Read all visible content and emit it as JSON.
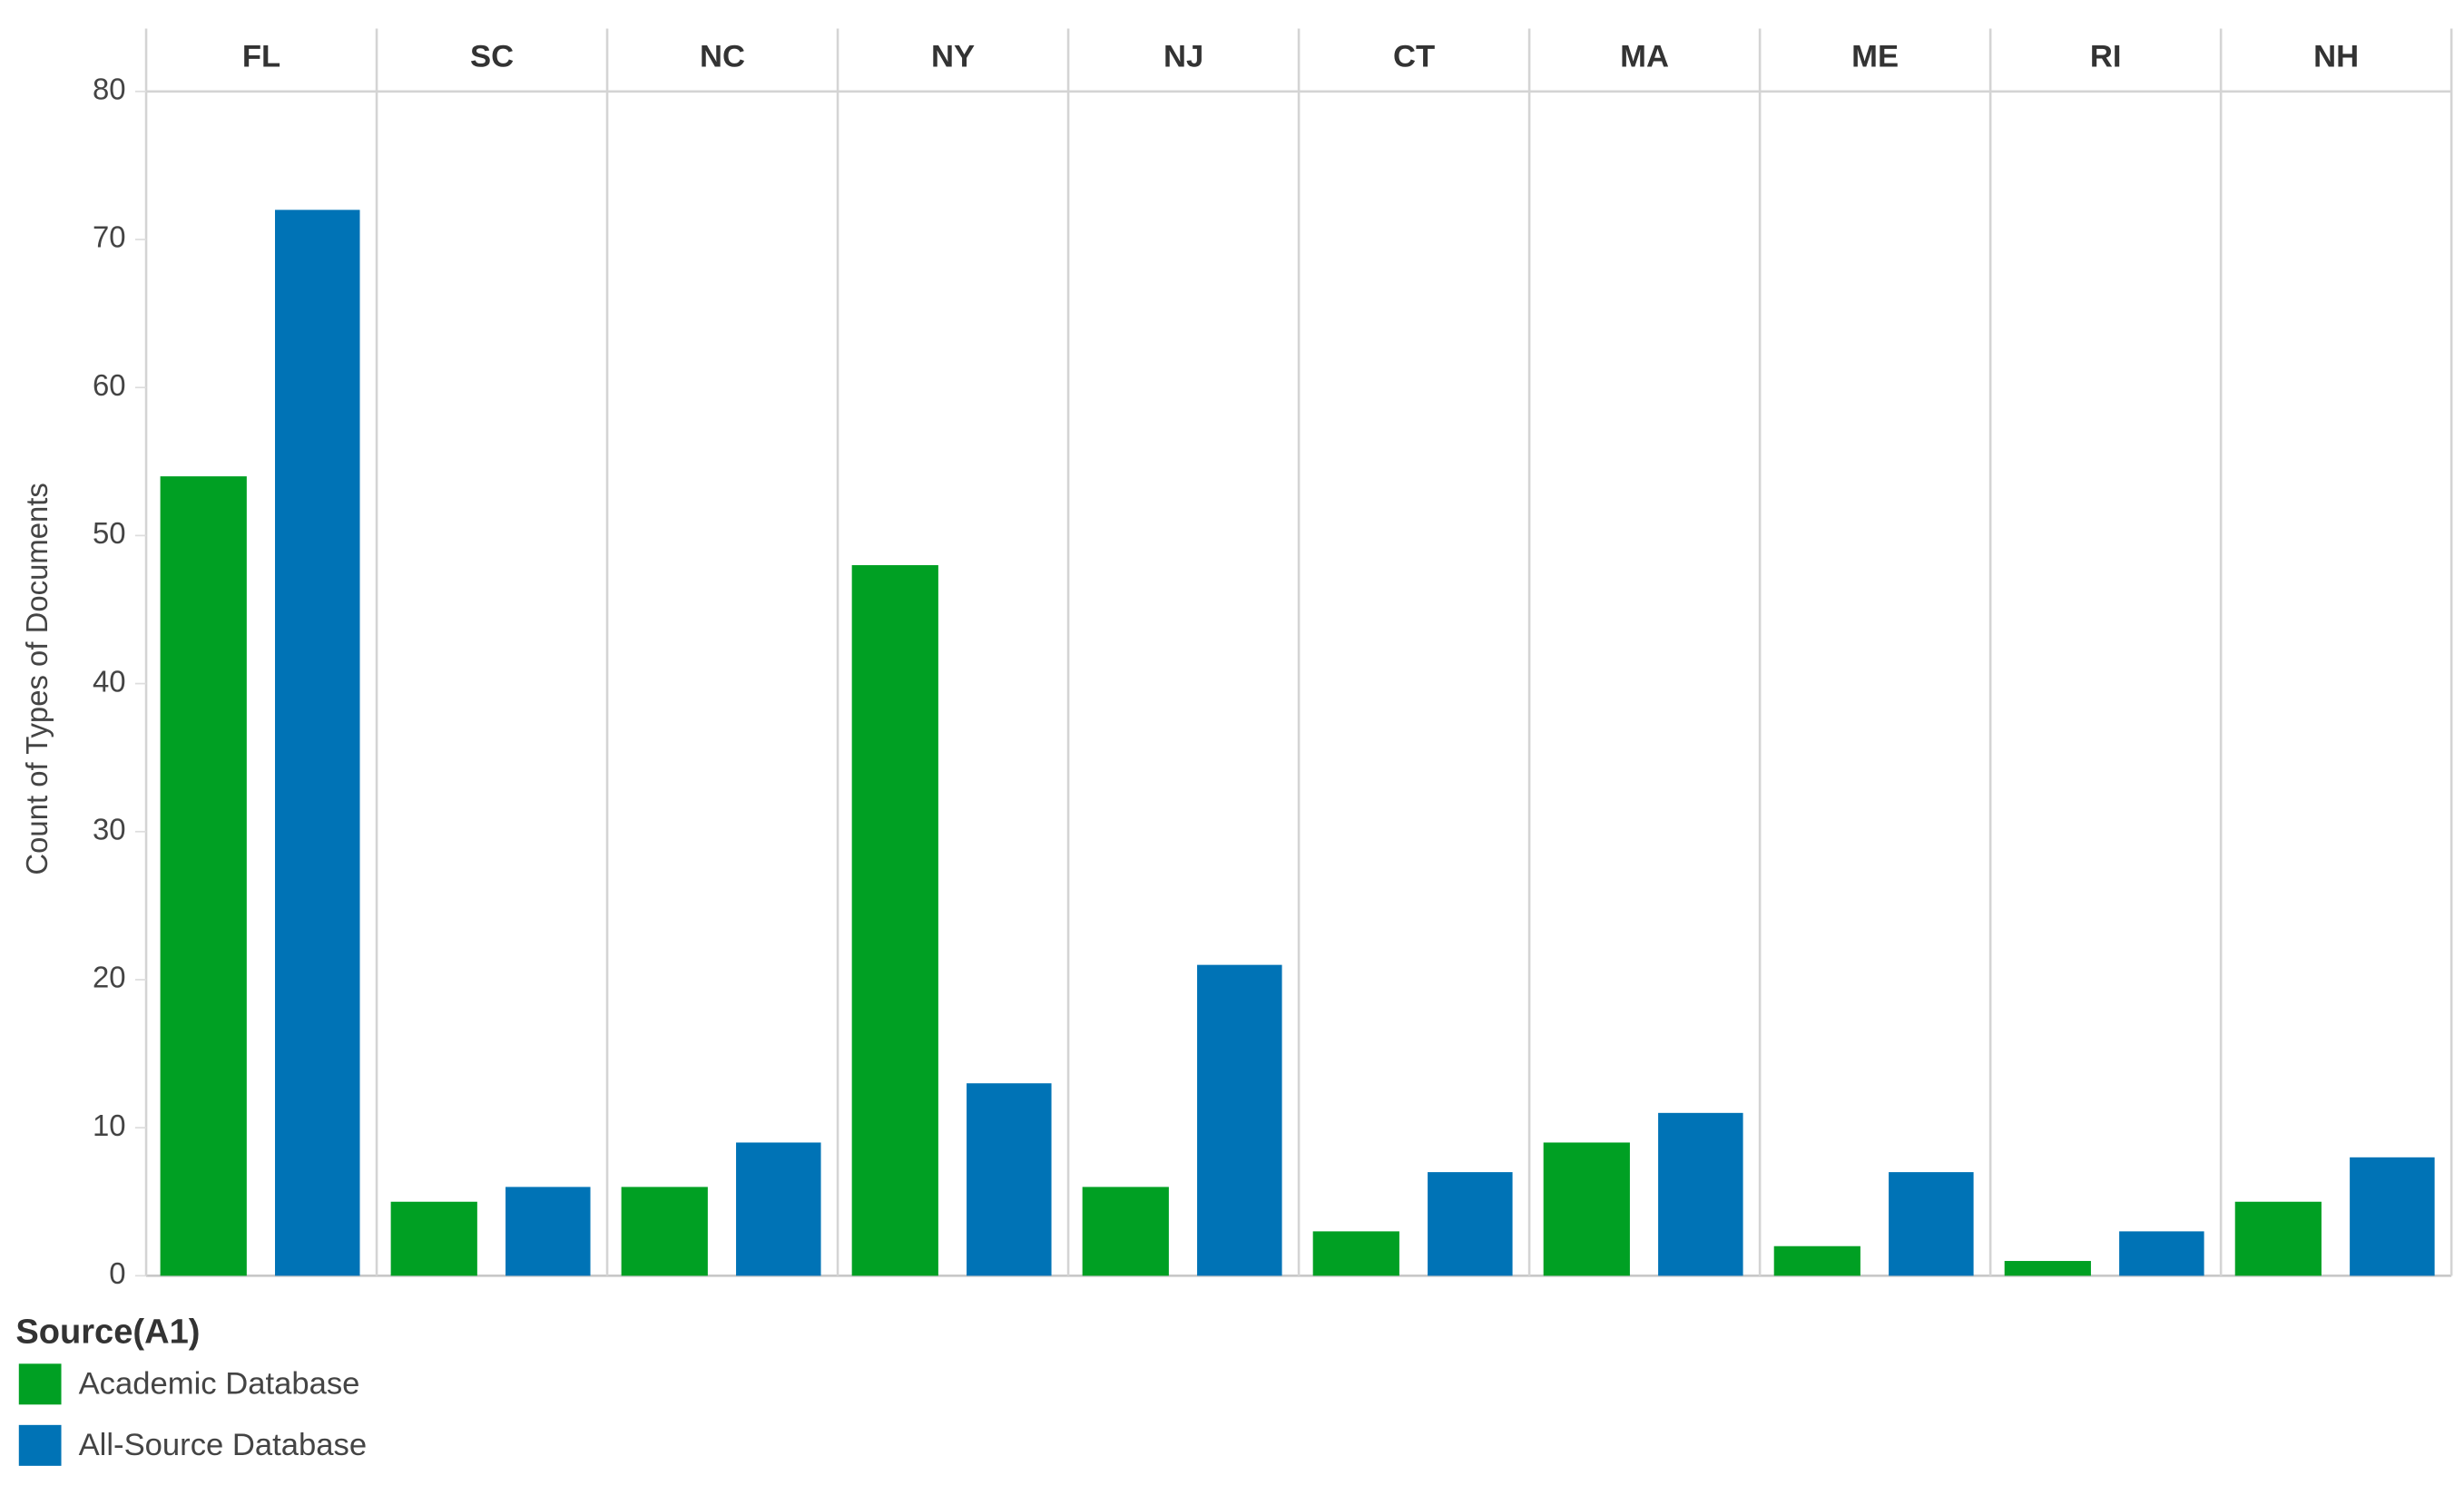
{
  "chart_data": {
    "type": "bar",
    "y_label": "Count of Types of Documents",
    "categories": [
      "FL",
      "SC",
      "NC",
      "NY",
      "NJ",
      "CT",
      "MA",
      "ME",
      "RI",
      "NH"
    ],
    "series": [
      {
        "name": "Academic Database",
        "color": "#00a023",
        "values": [
          54,
          5,
          6,
          48,
          6,
          3,
          9,
          2,
          1,
          5
        ]
      },
      {
        "name": "All-Source Database",
        "color": "#0073b6",
        "values": [
          72,
          6,
          9,
          13,
          21,
          7,
          11,
          7,
          3,
          8
        ]
      }
    ],
    "ylim": [
      0,
      80
    ],
    "yticks": [
      0,
      10,
      20,
      30,
      40,
      50,
      60,
      70,
      80
    ],
    "legend_title": "Source(A1)"
  }
}
